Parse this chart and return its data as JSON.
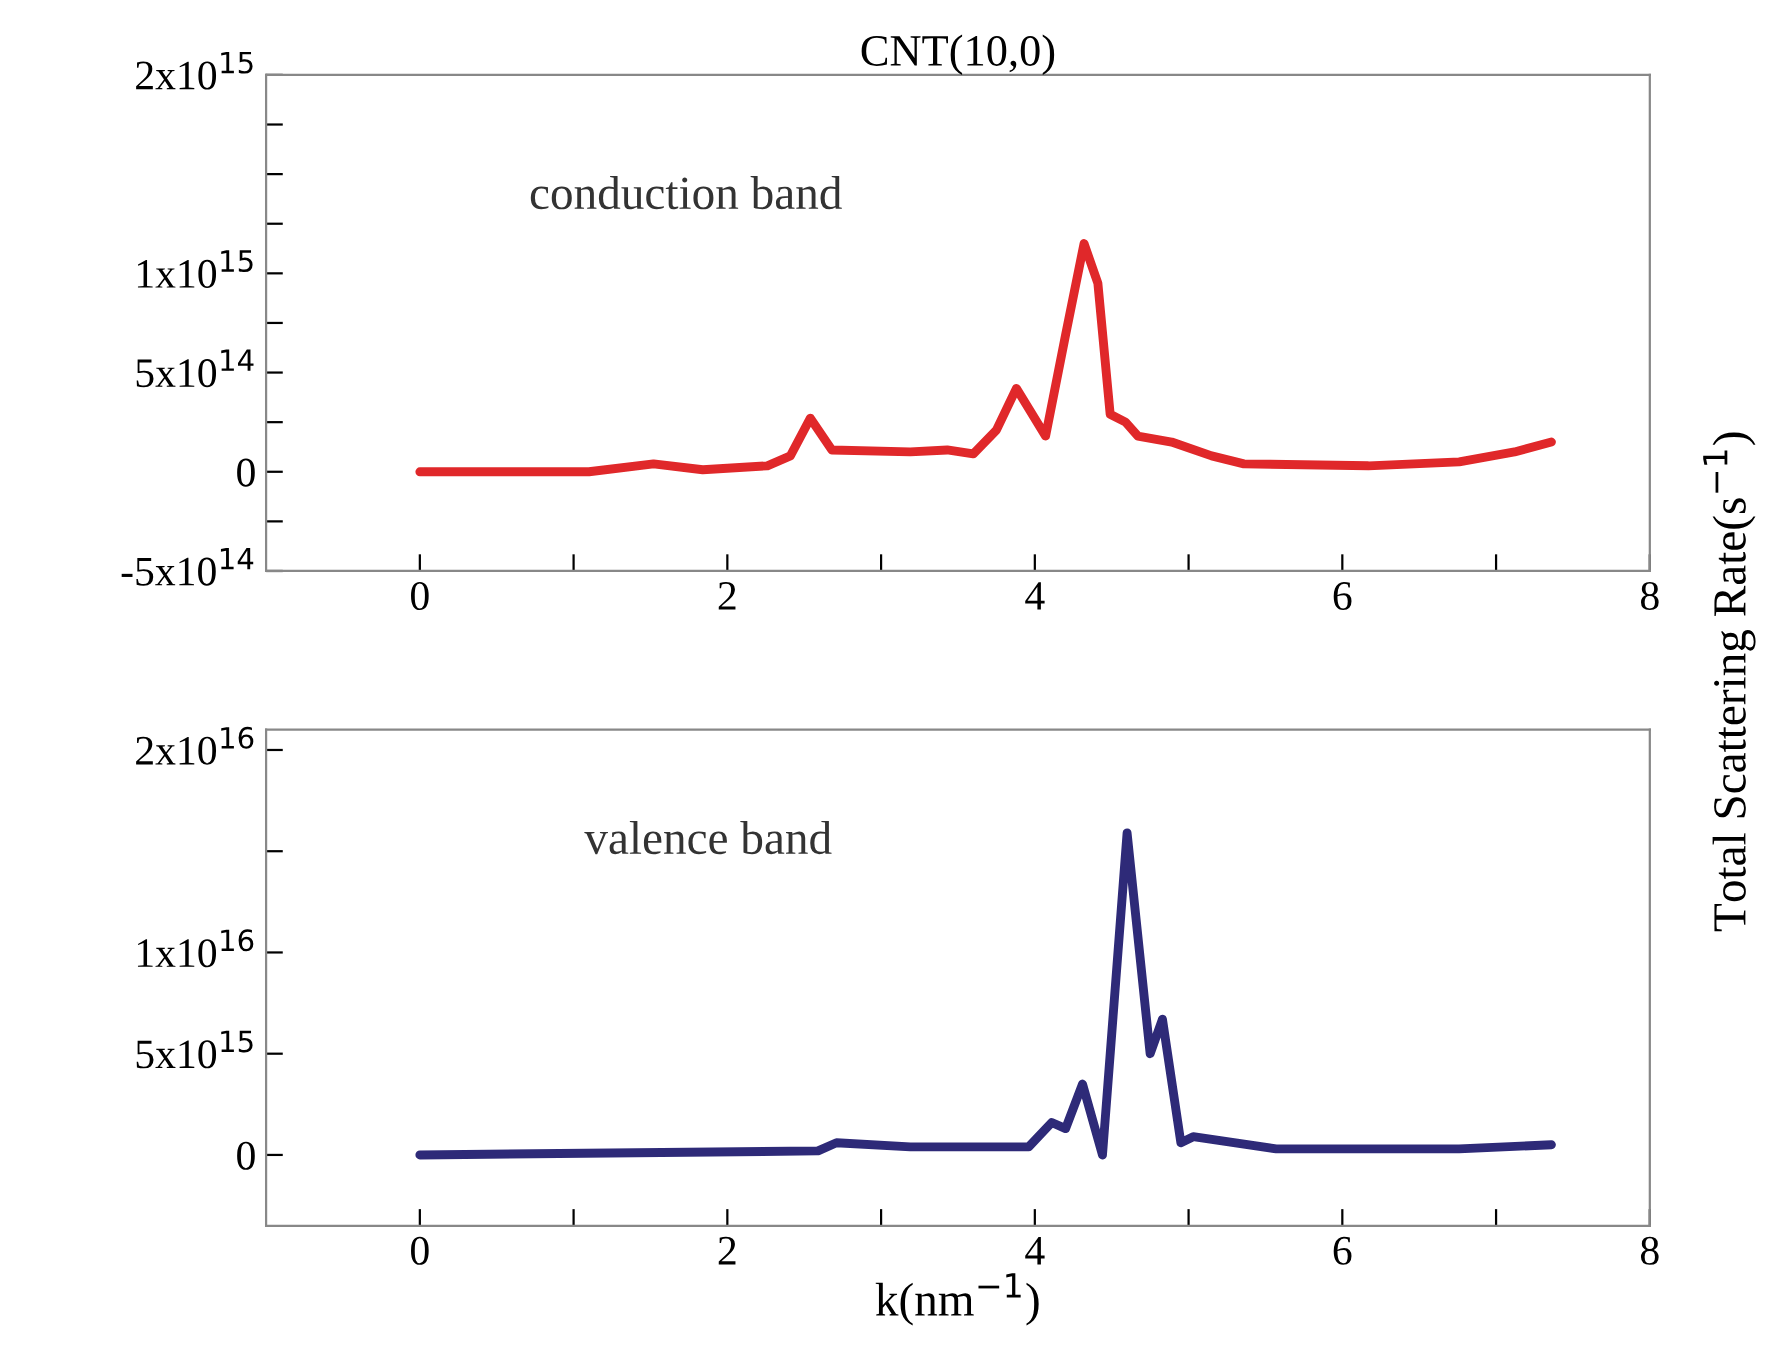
{
  "chart_data": [
    {
      "type": "line",
      "title": "CNT(10,0)",
      "ylabel": "Total Scattering Rate(s$^{−1}$)",
      "annotations": [
        "conduction band"
      ],
      "xlim": [
        -1,
        8
      ],
      "xticks": [
        0,
        {
          "value": 1,
          "label": null
        },
        2,
        {
          "value": 3,
          "label": null
        },
        4,
        {
          "value": 5,
          "label": null
        },
        6,
        {
          "value": 7,
          "label": null
        },
        8
      ],
      "ylim": [
        -500000000000000.0,
        2000000000000000.0
      ],
      "yticks": [
        {
          "value": -500000000000000.0,
          "label": "-5x10$^{14}$"
        },
        {
          "value": -250000000000000.0,
          "label": null
        },
        {
          "value": 0,
          "label": "0"
        },
        {
          "value": 250000000000000.0,
          "label": null
        },
        {
          "value": 500000000000000.0,
          "label": "5x10$^{14}$"
        },
        {
          "value": 750000000000000.0,
          "label": null
        },
        {
          "value": 1000000000000000.0,
          "label": "1x10$^{15}$"
        },
        {
          "value": 1250000000000000.0,
          "label": null
        },
        {
          "value": 1500000000000000.0,
          "label": null
        },
        {
          "value": 1750000000000000.0,
          "label": null
        },
        {
          "value": 2000000000000000.0,
          "label": "2x10$^{15}$"
        }
      ],
      "grid": false,
      "legend": false,
      "line_style": "solid",
      "series": [
        {
          "color": "#e0282a",
          "x": [
            0,
            1.1,
            1.52,
            1.84,
            2.26,
            2.41,
            2.54,
            2.68,
            3.19,
            3.43,
            3.6,
            3.75,
            3.88,
            4.07,
            4.2,
            4.32,
            4.41,
            4.49,
            4.59,
            4.67,
            4.89,
            5.15,
            5.36,
            6.17,
            6.76,
            7.12,
            7.36
          ],
          "values": [
            0,
            0,
            40000000000000.0,
            10000000000000.0,
            30000000000000.0,
            80000000000000.0,
            270000000000000.0,
            110000000000000.0,
            100000000000000.0,
            110000000000000.0,
            90000000000000.0,
            210000000000000.0,
            420000000000000.0,
            180000000000000.0,
            690000000000000.0,
            1150000000000000.0,
            950000000000000.0,
            290000000000000.0,
            250000000000000.0,
            180000000000000.0,
            150000000000000.0,
            80000000000000.0,
            40000000000000.0,
            30000000000000.0,
            50000000000000.0,
            100000000000000.0,
            150000000000000.0
          ]
        }
      ]
    },
    {
      "type": "line",
      "xlabel": "k(nm$^{−1}$)",
      "annotations": [
        "valence band"
      ],
      "xlim": [
        -1,
        8
      ],
      "xticks": [
        0,
        {
          "value": 1,
          "label": null
        },
        2,
        {
          "value": 3,
          "label": null
        },
        4,
        {
          "value": 5,
          "label": null
        },
        6,
        {
          "value": 7,
          "label": null
        },
        8
      ],
      "ylim": [
        -3500000000000000.0,
        2.1e+16
      ],
      "yticks": [
        {
          "value": 0,
          "label": "0"
        },
        {
          "value": 5000000000000000.0,
          "label": "5x10$^{15}$"
        },
        {
          "value": 1e+16,
          "label": "1x10$^{16}$"
        },
        {
          "value": 1.5e+16,
          "label": null
        },
        {
          "value": 2e+16,
          "label": "2x10$^{16}$"
        }
      ],
      "grid": false,
      "legend": false,
      "line_style": "solid",
      "series": [
        {
          "color": "#2e2a78",
          "x": [
            0,
            2.59,
            2.71,
            3.19,
            3.96,
            4.11,
            4.2,
            4.31,
            4.44,
            4.6,
            4.75,
            4.83,
            4.95,
            5.03,
            5.57,
            6.76,
            7.36
          ],
          "values": [
            0,
            200000000000000.0,
            600000000000000.0,
            400000000000000.0,
            400000000000000.0,
            1600000000000000.0,
            1300000000000000.0,
            3500000000000000.0,
            0,
            1.59e+16,
            5000000000000000.0,
            6700000000000000.0,
            600000000000000.0,
            900000000000000.0,
            300000000000000.0,
            300000000000000.0,
            500000000000000.0
          ]
        }
      ]
    }
  ]
}
